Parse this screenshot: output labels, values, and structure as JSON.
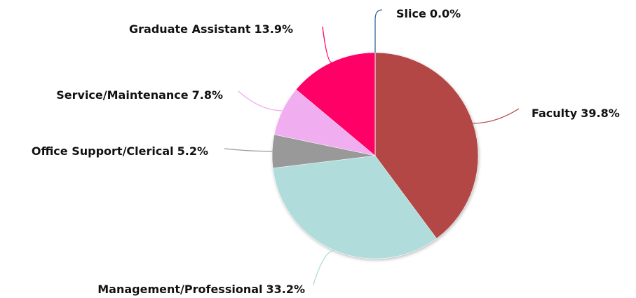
{
  "chart_data": {
    "type": "pie",
    "categories": [
      "Faculty",
      "Management/Professional",
      "Office Support/Clerical",
      "Service/Maintenance",
      "Graduate Assistant",
      "Slice"
    ],
    "values": [
      39.8,
      33.2,
      5.2,
      7.8,
      13.9,
      0.0
    ],
    "value_labels": [
      "39.8%",
      "33.2%",
      "5.2%",
      "7.8%",
      "13.9%",
      "0.0%"
    ],
    "colors": [
      "#b34745",
      "#b0dcdc",
      "#999999",
      "#f0aef0",
      "#ff0066",
      "#336699"
    ]
  }
}
